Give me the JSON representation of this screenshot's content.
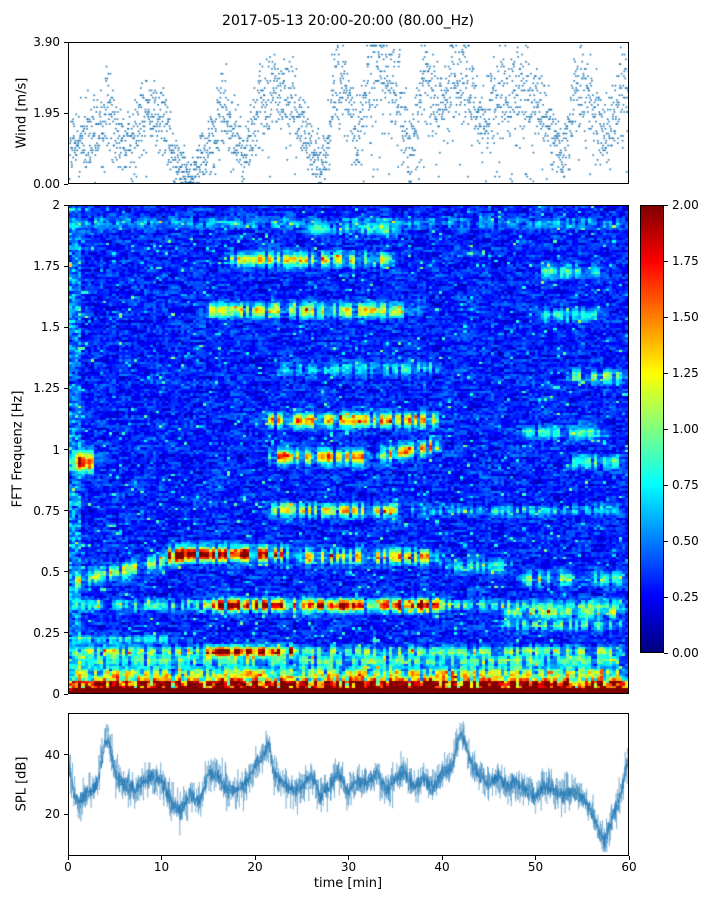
{
  "figure": {
    "title": "2017-05-13 20:00-20:00 (80.00_Hz)",
    "background": "#ffffff",
    "accent_color": "#1f77b4"
  },
  "chart_data": [
    {
      "id": "wind",
      "type": "scatter",
      "ylabel": "Wind [m/s]",
      "xlim": [
        0,
        60
      ],
      "ylim": [
        0,
        3.9
      ],
      "yticks": [
        0.0,
        1.95,
        3.9
      ],
      "ytick_labels": [
        "0.00",
        "1.95",
        "3.90"
      ],
      "marker_color": "#1f77b4",
      "points_per_min": 40,
      "spread": 0.55,
      "mean_envelope": [
        [
          0,
          0.9
        ],
        [
          2,
          1.5
        ],
        [
          4,
          2.1
        ],
        [
          6,
          0.9
        ],
        [
          8,
          1.9
        ],
        [
          10,
          1.9
        ],
        [
          11.5,
          0.5
        ],
        [
          13,
          0.25
        ],
        [
          15,
          1.0
        ],
        [
          16.5,
          2.2
        ],
        [
          18,
          1.2
        ],
        [
          19,
          0.9
        ],
        [
          20,
          2.0
        ],
        [
          22,
          2.7
        ],
        [
          24,
          2.2
        ],
        [
          26,
          0.9
        ],
        [
          27.5,
          0.7
        ],
        [
          28.5,
          2.9
        ],
        [
          30,
          2.2
        ],
        [
          31,
          1.3
        ],
        [
          32,
          3.0
        ],
        [
          33.5,
          3.2
        ],
        [
          35,
          2.6
        ],
        [
          36.5,
          1.1
        ],
        [
          38,
          2.9
        ],
        [
          39.5,
          2.1
        ],
        [
          41,
          3.0
        ],
        [
          42.5,
          3.0
        ],
        [
          44,
          1.7
        ],
        [
          46,
          2.5
        ],
        [
          48,
          2.7
        ],
        [
          50,
          2.3
        ],
        [
          51.5,
          1.5
        ],
        [
          53,
          0.8
        ],
        [
          54.5,
          2.8
        ],
        [
          56,
          2.2
        ],
        [
          57.5,
          1.4
        ],
        [
          58.5,
          1.9
        ],
        [
          60,
          2.9
        ]
      ]
    },
    {
      "id": "spectrogram",
      "type": "heatmap",
      "ylabel": "FFT Frequenz [Hz]",
      "xlim": [
        0,
        60
      ],
      "ylim": [
        0,
        2
      ],
      "yticks": [
        0,
        0.25,
        0.5,
        0.75,
        1,
        1.25,
        1.5,
        1.75,
        2
      ],
      "ytick_labels": [
        "0",
        "0.25",
        "0.5",
        "0.75",
        "1",
        "1.25",
        "1.5",
        "1.75",
        "2"
      ],
      "colormap": "jet",
      "clim": [
        0,
        2
      ],
      "grid": {
        "nx": 180,
        "ny": 200
      },
      "background_level": 0.08,
      "noise_level": 0.26,
      "colorbar": {
        "values": [
          2.0,
          1.75,
          1.5,
          1.25,
          1.0,
          0.75,
          0.5,
          0.25,
          0.0
        ],
        "labels": [
          "2.00",
          "1.75",
          "1.50",
          "1.25",
          "1.00",
          "0.75",
          "0.50",
          "0.25",
          "0.00"
        ]
      },
      "bands": [
        {
          "f0": 0.01,
          "t0": 0,
          "t1": 60,
          "amp": 2.0,
          "w": 0.012
        },
        {
          "f0": 0.045,
          "t0": 0,
          "t1": 60,
          "amp": 1.2,
          "w": 0.015
        },
        {
          "f0": 0.08,
          "t0": 0,
          "t1": 60,
          "amp": 0.8,
          "w": 0.015
        },
        {
          "f0": 0.13,
          "t0": 0,
          "t1": 60,
          "amp": 0.65,
          "w": 0.015
        },
        {
          "f0": 0.17,
          "t0": 0,
          "t1": 60,
          "amp": 0.75,
          "w": 0.015
        },
        {
          "f0": 0.17,
          "t0": 14,
          "t1": 25,
          "amp": 1.1,
          "w": 0.015
        },
        {
          "f0": 0.22,
          "t0": 0,
          "t1": 12,
          "amp": 0.5,
          "w": 0.012
        },
        {
          "f0": 0.28,
          "t0": 46,
          "t1": 60,
          "amp": 0.6,
          "w": 0.015
        },
        {
          "f0": 0.33,
          "t0": 46,
          "t1": 60,
          "amp": 0.7,
          "w": 0.015
        },
        {
          "f0": 0.36,
          "t0": 0,
          "t1": 60,
          "amp": 0.55,
          "w": 0.015
        },
        {
          "f0": 0.36,
          "t0": 14,
          "t1": 41,
          "amp": 1.25,
          "w": 0.018
        },
        {
          "f0": 0.45,
          "f1": 0.57,
          "t0": 0,
          "t1": 13,
          "amp": 0.85,
          "w": 0.02
        },
        {
          "f0": 0.57,
          "t0": 10,
          "t1": 24,
          "amp": 1.6,
          "w": 0.02
        },
        {
          "f0": 0.56,
          "t0": 24,
          "t1": 40,
          "amp": 1.1,
          "w": 0.02
        },
        {
          "f0": 0.52,
          "t0": 40,
          "t1": 48,
          "amp": 0.5,
          "w": 0.02
        },
        {
          "f0": 0.47,
          "t0": 48,
          "t1": 60,
          "amp": 0.7,
          "w": 0.02
        },
        {
          "f0": 0.75,
          "t0": 21,
          "t1": 36,
          "amp": 1.0,
          "w": 0.018
        },
        {
          "f0": 0.75,
          "t0": 36,
          "t1": 60,
          "amp": 0.4,
          "w": 0.015
        },
        {
          "f0": 0.95,
          "t0": 0,
          "t1": 3.5,
          "amp": 1.2,
          "w": 0.03
        },
        {
          "f0": 0.97,
          "t0": 21,
          "t1": 33,
          "amp": 1.2,
          "w": 0.02
        },
        {
          "f0": 0.97,
          "f1": 1.02,
          "t0": 33,
          "t1": 40,
          "amp": 1.3,
          "w": 0.02
        },
        {
          "f0": 0.95,
          "t0": 53,
          "t1": 60,
          "amp": 0.6,
          "w": 0.018
        },
        {
          "f0": 1.12,
          "t0": 20,
          "t1": 40,
          "amp": 1.15,
          "w": 0.02
        },
        {
          "f0": 1.07,
          "t0": 48,
          "t1": 58,
          "amp": 0.6,
          "w": 0.018
        },
        {
          "f0": 1.3,
          "t0": 53,
          "t1": 60,
          "amp": 0.75,
          "w": 0.018
        },
        {
          "f0": 1.33,
          "t0": 22,
          "t1": 40,
          "amp": 0.45,
          "w": 0.018
        },
        {
          "f0": 1.57,
          "t0": 14,
          "t1": 38,
          "amp": 0.9,
          "w": 0.02
        },
        {
          "f0": 1.55,
          "t0": 50,
          "t1": 58,
          "amp": 0.5,
          "w": 0.018
        },
        {
          "f0": 1.78,
          "t0": 17,
          "t1": 35,
          "amp": 1.0,
          "w": 0.02
        },
        {
          "f0": 1.73,
          "t0": 50,
          "t1": 58,
          "amp": 0.55,
          "w": 0.018
        },
        {
          "f0": 1.9,
          "t0": 25,
          "t1": 36,
          "amp": 0.5,
          "w": 0.015
        },
        {
          "f0": 1.93,
          "t0": 0,
          "t1": 60,
          "amp": 0.3,
          "w": 0.015
        }
      ]
    },
    {
      "id": "spl",
      "type": "line",
      "ylabel": "SPL [dB]",
      "xlabel": "time [min]",
      "xlim": [
        0,
        60
      ],
      "ylim": [
        6,
        54
      ],
      "yticks": [
        20,
        40
      ],
      "ytick_labels": [
        "20",
        "40"
      ],
      "xticks": [
        0,
        10,
        20,
        30,
        40,
        50,
        60
      ],
      "xtick_labels": [
        "0",
        "10",
        "20",
        "30",
        "40",
        "50",
        "60"
      ],
      "line_color": "#1f77b4",
      "noise": 2.5,
      "control_points": [
        [
          0,
          36
        ],
        [
          0.5,
          27
        ],
        [
          1,
          24
        ],
        [
          2,
          27
        ],
        [
          3,
          30
        ],
        [
          4,
          46
        ],
        [
          4.5,
          42
        ],
        [
          5,
          33
        ],
        [
          6,
          30
        ],
        [
          7,
          28
        ],
        [
          8,
          31
        ],
        [
          9,
          33
        ],
        [
          10,
          31
        ],
        [
          11,
          24
        ],
        [
          12,
          21
        ],
        [
          13,
          27
        ],
        [
          14,
          24
        ],
        [
          15,
          34
        ],
        [
          16,
          33
        ],
        [
          17,
          28
        ],
        [
          18,
          28
        ],
        [
          19,
          30
        ],
        [
          20,
          36
        ],
        [
          21,
          41
        ],
        [
          21.5,
          44
        ],
        [
          22,
          34
        ],
        [
          23,
          30
        ],
        [
          24,
          28
        ],
        [
          25,
          29
        ],
        [
          26,
          33
        ],
        [
          27,
          26
        ],
        [
          28,
          30
        ],
        [
          29,
          34
        ],
        [
          30,
          27
        ],
        [
          31,
          32
        ],
        [
          32,
          30
        ],
        [
          33,
          34
        ],
        [
          34,
          28
        ],
        [
          35,
          32
        ],
        [
          36,
          34
        ],
        [
          37,
          29
        ],
        [
          38,
          32
        ],
        [
          39,
          28
        ],
        [
          40,
          34
        ],
        [
          41,
          36
        ],
        [
          42,
          47
        ],
        [
          42.5,
          44
        ],
        [
          43,
          39
        ],
        [
          44,
          33
        ],
        [
          45,
          30
        ],
        [
          46,
          33
        ],
        [
          47,
          29
        ],
        [
          48,
          31
        ],
        [
          49,
          28
        ],
        [
          50,
          26
        ],
        [
          51,
          30
        ],
        [
          52,
          28
        ],
        [
          53,
          26
        ],
        [
          54,
          28
        ],
        [
          55,
          26
        ],
        [
          56,
          21
        ],
        [
          57,
          14
        ],
        [
          57.5,
          11
        ],
        [
          58,
          16
        ],
        [
          59,
          24
        ],
        [
          60,
          38
        ]
      ]
    }
  ]
}
